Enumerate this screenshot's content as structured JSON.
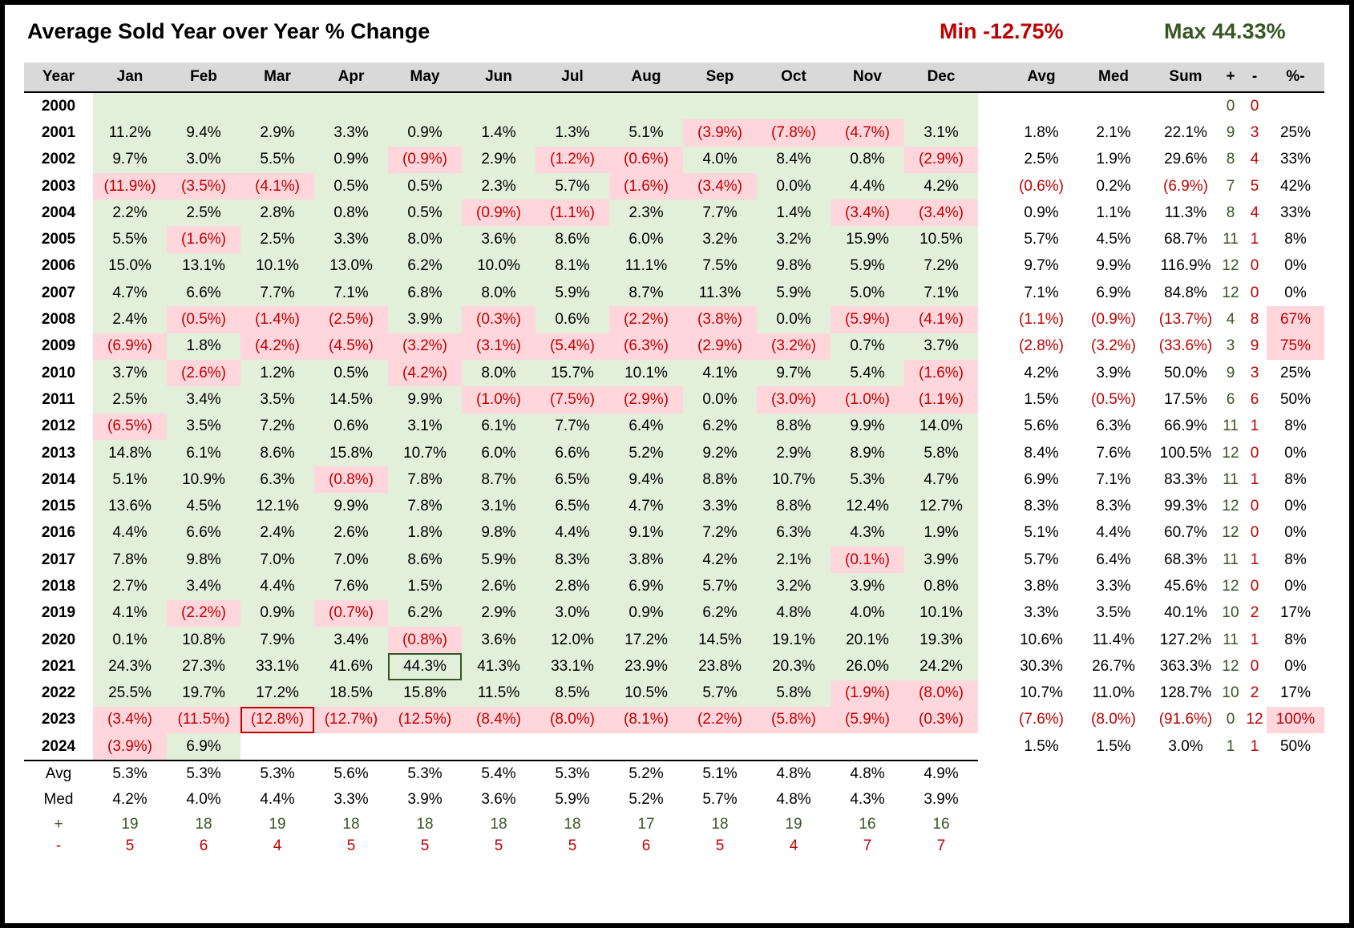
{
  "title": "Average Sold Year over Year % Change",
  "min_label": "Min -12.75%",
  "max_label": "Max 44.33%",
  "headers": [
    "Year",
    "Jan",
    "Feb",
    "Mar",
    "Apr",
    "May",
    "Jun",
    "Jul",
    "Aug",
    "Sep",
    "Oct",
    "Nov",
    "Dec",
    "",
    "Avg",
    "Med",
    "Sum",
    "+",
    "-",
    "%-"
  ],
  "colors": {
    "green_fill": "#e2efda",
    "pink_fill": "#ffd6dc",
    "negative_text": "#c00000",
    "positive_text": "#375623"
  },
  "chart_data": {
    "type": "table",
    "title": "Average Sold Year over Year % Change",
    "min": -12.75,
    "max": 44.33,
    "min_cell": {
      "year": "2023",
      "month": "Mar"
    },
    "max_cell": {
      "year": "2021",
      "month": "May"
    },
    "rows": [
      {
        "year": "2000",
        "months": [
          "",
          "",
          "",
          "",
          "",
          "",
          "",
          "",
          "",
          "",
          "",
          ""
        ],
        "avg": "",
        "med": "",
        "sum": "",
        "plus": "0",
        "minus": "0",
        "pct": ""
      },
      {
        "year": "2001",
        "months": [
          "11.2%",
          "9.4%",
          "2.9%",
          "3.3%",
          "0.9%",
          "1.4%",
          "1.3%",
          "5.1%",
          "(3.9%)",
          "(7.8%)",
          "(4.7%)",
          "3.1%"
        ],
        "avg": "1.8%",
        "med": "2.1%",
        "sum": "22.1%",
        "plus": "9",
        "minus": "3",
        "pct": "25%"
      },
      {
        "year": "2002",
        "months": [
          "9.7%",
          "3.0%",
          "5.5%",
          "0.9%",
          "(0.9%)",
          "2.9%",
          "(1.2%)",
          "(0.6%)",
          "4.0%",
          "8.4%",
          "0.8%",
          "(2.9%)"
        ],
        "avg": "2.5%",
        "med": "1.9%",
        "sum": "29.6%",
        "plus": "8",
        "minus": "4",
        "pct": "33%"
      },
      {
        "year": "2003",
        "months": [
          "(11.9%)",
          "(3.5%)",
          "(4.1%)",
          "0.5%",
          "0.5%",
          "2.3%",
          "5.7%",
          "(1.6%)",
          "(3.4%)",
          "0.0%",
          "4.4%",
          "4.2%"
        ],
        "avg": "(0.6%)",
        "med": "0.2%",
        "sum": "(6.9%)",
        "plus": "7",
        "minus": "5",
        "pct": "42%"
      },
      {
        "year": "2004",
        "months": [
          "2.2%",
          "2.5%",
          "2.8%",
          "0.8%",
          "0.5%",
          "(0.9%)",
          "(1.1%)",
          "2.3%",
          "7.7%",
          "1.4%",
          "(3.4%)",
          "(3.4%)"
        ],
        "avg": "0.9%",
        "med": "1.1%",
        "sum": "11.3%",
        "plus": "8",
        "minus": "4",
        "pct": "33%"
      },
      {
        "year": "2005",
        "months": [
          "5.5%",
          "(1.6%)",
          "2.5%",
          "3.3%",
          "8.0%",
          "3.6%",
          "8.6%",
          "6.0%",
          "3.2%",
          "3.2%",
          "15.9%",
          "10.5%"
        ],
        "avg": "5.7%",
        "med": "4.5%",
        "sum": "68.7%",
        "plus": "11",
        "minus": "1",
        "pct": "8%"
      },
      {
        "year": "2006",
        "months": [
          "15.0%",
          "13.1%",
          "10.1%",
          "13.0%",
          "6.2%",
          "10.0%",
          "8.1%",
          "11.1%",
          "7.5%",
          "9.8%",
          "5.9%",
          "7.2%"
        ],
        "avg": "9.7%",
        "med": "9.9%",
        "sum": "116.9%",
        "plus": "12",
        "minus": "0",
        "pct": "0%"
      },
      {
        "year": "2007",
        "months": [
          "4.7%",
          "6.6%",
          "7.7%",
          "7.1%",
          "6.8%",
          "8.0%",
          "5.9%",
          "8.7%",
          "11.3%",
          "5.9%",
          "5.0%",
          "7.1%"
        ],
        "avg": "7.1%",
        "med": "6.9%",
        "sum": "84.8%",
        "plus": "12",
        "minus": "0",
        "pct": "0%"
      },
      {
        "year": "2008",
        "months": [
          "2.4%",
          "(0.5%)",
          "(1.4%)",
          "(2.5%)",
          "3.9%",
          "(0.3%)",
          "0.6%",
          "(2.2%)",
          "(3.8%)",
          "0.0%",
          "(5.9%)",
          "(4.1%)"
        ],
        "avg": "(1.1%)",
        "med": "(0.9%)",
        "sum": "(13.7%)",
        "plus": "4",
        "minus": "8",
        "pct": "67%"
      },
      {
        "year": "2009",
        "months": [
          "(6.9%)",
          "1.8%",
          "(4.2%)",
          "(4.5%)",
          "(3.2%)",
          "(3.1%)",
          "(5.4%)",
          "(6.3%)",
          "(2.9%)",
          "(3.2%)",
          "0.7%",
          "3.7%"
        ],
        "avg": "(2.8%)",
        "med": "(3.2%)",
        "sum": "(33.6%)",
        "plus": "3",
        "minus": "9",
        "pct": "75%"
      },
      {
        "year": "2010",
        "months": [
          "3.7%",
          "(2.6%)",
          "1.2%",
          "0.5%",
          "(4.2%)",
          "8.0%",
          "15.7%",
          "10.1%",
          "4.1%",
          "9.7%",
          "5.4%",
          "(1.6%)"
        ],
        "avg": "4.2%",
        "med": "3.9%",
        "sum": "50.0%",
        "plus": "9",
        "minus": "3",
        "pct": "25%"
      },
      {
        "year": "2011",
        "months": [
          "2.5%",
          "3.4%",
          "3.5%",
          "14.5%",
          "9.9%",
          "(1.0%)",
          "(7.5%)",
          "(2.9%)",
          "0.0%",
          "(3.0%)",
          "(1.0%)",
          "(1.1%)"
        ],
        "avg": "1.5%",
        "med": "(0.5%)",
        "sum": "17.5%",
        "plus": "6",
        "minus": "6",
        "pct": "50%"
      },
      {
        "year": "2012",
        "months": [
          "(6.5%)",
          "3.5%",
          "7.2%",
          "0.6%",
          "3.1%",
          "6.1%",
          "7.7%",
          "6.4%",
          "6.2%",
          "8.8%",
          "9.9%",
          "14.0%"
        ],
        "avg": "5.6%",
        "med": "6.3%",
        "sum": "66.9%",
        "plus": "11",
        "minus": "1",
        "pct": "8%"
      },
      {
        "year": "2013",
        "months": [
          "14.8%",
          "6.1%",
          "8.6%",
          "15.8%",
          "10.7%",
          "6.0%",
          "6.6%",
          "5.2%",
          "9.2%",
          "2.9%",
          "8.9%",
          "5.8%"
        ],
        "avg": "8.4%",
        "med": "7.6%",
        "sum": "100.5%",
        "plus": "12",
        "minus": "0",
        "pct": "0%"
      },
      {
        "year": "2014",
        "months": [
          "5.1%",
          "10.9%",
          "6.3%",
          "(0.8%)",
          "7.8%",
          "8.7%",
          "6.5%",
          "9.4%",
          "8.8%",
          "10.7%",
          "5.3%",
          "4.7%"
        ],
        "avg": "6.9%",
        "med": "7.1%",
        "sum": "83.3%",
        "plus": "11",
        "minus": "1",
        "pct": "8%"
      },
      {
        "year": "2015",
        "months": [
          "13.6%",
          "4.5%",
          "12.1%",
          "9.9%",
          "7.8%",
          "3.1%",
          "6.5%",
          "4.7%",
          "3.3%",
          "8.8%",
          "12.4%",
          "12.7%"
        ],
        "avg": "8.3%",
        "med": "8.3%",
        "sum": "99.3%",
        "plus": "12",
        "minus": "0",
        "pct": "0%"
      },
      {
        "year": "2016",
        "months": [
          "4.4%",
          "6.6%",
          "2.4%",
          "2.6%",
          "1.8%",
          "9.8%",
          "4.4%",
          "9.1%",
          "7.2%",
          "6.3%",
          "4.3%",
          "1.9%"
        ],
        "avg": "5.1%",
        "med": "4.4%",
        "sum": "60.7%",
        "plus": "12",
        "minus": "0",
        "pct": "0%"
      },
      {
        "year": "2017",
        "months": [
          "7.8%",
          "9.8%",
          "7.0%",
          "7.0%",
          "8.6%",
          "5.9%",
          "8.3%",
          "3.8%",
          "4.2%",
          "2.1%",
          "(0.1%)",
          "3.9%"
        ],
        "avg": "5.7%",
        "med": "6.4%",
        "sum": "68.3%",
        "plus": "11",
        "minus": "1",
        "pct": "8%"
      },
      {
        "year": "2018",
        "months": [
          "2.7%",
          "3.4%",
          "4.4%",
          "7.6%",
          "1.5%",
          "2.6%",
          "2.8%",
          "6.9%",
          "5.7%",
          "3.2%",
          "3.9%",
          "0.8%"
        ],
        "avg": "3.8%",
        "med": "3.3%",
        "sum": "45.6%",
        "plus": "12",
        "minus": "0",
        "pct": "0%"
      },
      {
        "year": "2019",
        "months": [
          "4.1%",
          "(2.2%)",
          "0.9%",
          "(0.7%)",
          "6.2%",
          "2.9%",
          "3.0%",
          "0.9%",
          "6.2%",
          "4.8%",
          "4.0%",
          "10.1%"
        ],
        "avg": "3.3%",
        "med": "3.5%",
        "sum": "40.1%",
        "plus": "10",
        "minus": "2",
        "pct": "17%"
      },
      {
        "year": "2020",
        "months": [
          "0.1%",
          "10.8%",
          "7.9%",
          "3.4%",
          "(0.8%)",
          "3.6%",
          "12.0%",
          "17.2%",
          "14.5%",
          "19.1%",
          "20.1%",
          "19.3%"
        ],
        "avg": "10.6%",
        "med": "11.4%",
        "sum": "127.2%",
        "plus": "11",
        "minus": "1",
        "pct": "8%"
      },
      {
        "year": "2021",
        "months": [
          "24.3%",
          "27.3%",
          "33.1%",
          "41.6%",
          "44.3%",
          "41.3%",
          "33.1%",
          "23.9%",
          "23.8%",
          "20.3%",
          "26.0%",
          "24.2%"
        ],
        "avg": "30.3%",
        "med": "26.7%",
        "sum": "363.3%",
        "plus": "12",
        "minus": "0",
        "pct": "0%"
      },
      {
        "year": "2022",
        "months": [
          "25.5%",
          "19.7%",
          "17.2%",
          "18.5%",
          "15.8%",
          "11.5%",
          "8.5%",
          "10.5%",
          "5.7%",
          "5.8%",
          "(1.9%)",
          "(8.0%)"
        ],
        "avg": "10.7%",
        "med": "11.0%",
        "sum": "128.7%",
        "plus": "10",
        "minus": "2",
        "pct": "17%"
      },
      {
        "year": "2023",
        "months": [
          "(3.4%)",
          "(11.5%)",
          "(12.8%)",
          "(12.7%)",
          "(12.5%)",
          "(8.4%)",
          "(8.0%)",
          "(8.1%)",
          "(2.2%)",
          "(5.8%)",
          "(5.9%)",
          "(0.3%)"
        ],
        "avg": "(7.6%)",
        "med": "(8.0%)",
        "sum": "(91.6%)",
        "plus": "0",
        "minus": "12",
        "pct": "100%"
      },
      {
        "year": "2024",
        "months": [
          "(3.9%)",
          "6.9%",
          "",
          "",
          "",
          "",
          "",
          "",
          "",
          "",
          "",
          ""
        ],
        "avg": "1.5%",
        "med": "1.5%",
        "sum": "3.0%",
        "plus": "1",
        "minus": "1",
        "pct": "50%"
      }
    ],
    "summary": [
      {
        "label": "Avg",
        "values": [
          "5.3%",
          "5.3%",
          "5.3%",
          "5.6%",
          "5.3%",
          "5.4%",
          "5.3%",
          "5.2%",
          "5.1%",
          "4.8%",
          "4.8%",
          "4.9%"
        ]
      },
      {
        "label": "Med",
        "values": [
          "4.2%",
          "4.0%",
          "4.4%",
          "3.3%",
          "3.9%",
          "3.6%",
          "5.9%",
          "5.2%",
          "5.7%",
          "4.8%",
          "4.3%",
          "3.9%"
        ]
      },
      {
        "label": "+",
        "values": [
          "19",
          "18",
          "19",
          "18",
          "18",
          "18",
          "18",
          "17",
          "18",
          "19",
          "16",
          "16"
        ]
      },
      {
        "label": "-",
        "values": [
          "5",
          "6",
          "4",
          "5",
          "5",
          "5",
          "5",
          "6",
          "5",
          "4",
          "7",
          "7"
        ]
      }
    ],
    "highlighted_pct_rows": [
      "2008",
      "2009",
      "2023"
    ]
  }
}
